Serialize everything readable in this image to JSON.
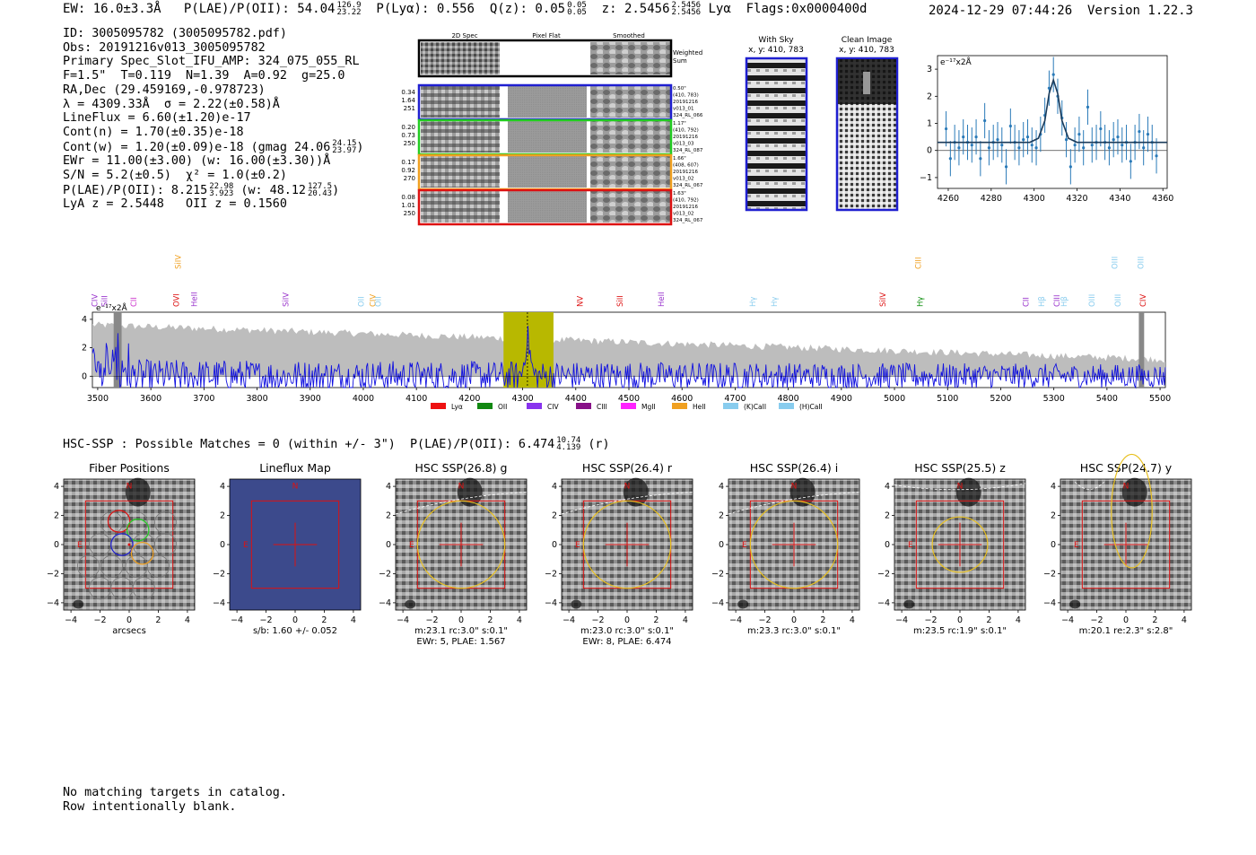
{
  "header": {
    "left_line": "EW: 16.0±3.3Å   P(LAE)/P(OII): 54.04",
    "plae_hi": "126.9",
    "plae_lo": "23.22",
    "plya": "  P(Lyα): 0.556  Q(z): 0.05",
    "qz_hi": "0.05",
    "qz_lo": "0.05",
    "z_text": "  z: 2.5456",
    "z_hi": "2.5456",
    "z_lo": "2.5456",
    "flags": " Lyα  Flags:0x0000400d",
    "datetime": "2024-12-29 07:44:26  Version 1.22.3"
  },
  "info": {
    "id": "ID: 3005095782 (3005095782.pdf)",
    "obs": "Obs: 20191216v013_3005095782",
    "slot": "Primary Spec_Slot_IFU_AMP: 324_075_055_RL",
    "params": "F=1.5\"  T=0.119  N=1.39  A=0.92  g=25.0",
    "radec": "RA,Dec (29.459169,-0.978723)",
    "wave": "λ = 4309.33Å  σ = 2.22(±0.58)Å",
    "lineflux": "LineFlux = 6.60(±1.20)e-17",
    "contn": "Cont(n) = 1.70(±0.35)e-18",
    "contw": "Cont(w) = 1.20(±0.09)e-18 (gmag 24.06",
    "gmag_hi": "24.15",
    "gmag_lo": "23.97",
    "ewr": "EWr = 11.00(±3.00) (w: 16.00(±3.30))Å",
    "sn": "S/N = 5.2(±0.5)  χ² = 1.0(±0.2)",
    "plae": "P(LAE)/P(OII): 8.215",
    "plae2_hi": "22.98",
    "plae2_lo": "3.923",
    "plae_w": " (w: 48.12",
    "plaew_hi": "127.5",
    "plaew_lo": "20.43",
    "lya_z": "LyA z = 2.5448   OII z = 0.1560"
  },
  "cutouts": {
    "col_titles": [
      "2D Spec",
      "Pixel Flat",
      "Smoothed"
    ],
    "weighted_label": [
      "Weighted",
      "Sum"
    ],
    "rows": [
      {
        "stats": [
          "0.34",
          "1.64",
          "251"
        ],
        "right": [
          "0.50\"",
          "(410, 783)",
          "20191216",
          "v013_01",
          "324_RL_066"
        ],
        "color": "#1f1fd0"
      },
      {
        "stats": [
          "0.20",
          "0.73",
          "250"
        ],
        "right": [
          "1.17\"",
          "(410, 792)",
          "20191216",
          "v013_03",
          "324_RL_087"
        ],
        "color": "#22cc22"
      },
      {
        "stats": [
          "0.17",
          "0.92",
          "270"
        ],
        "right": [
          "1.66\"",
          "(408, 607)",
          "20191216",
          "v013_02",
          "324_RL_067"
        ],
        "color": "#f0a020"
      },
      {
        "stats": [
          "0.08",
          "1.01",
          "250"
        ],
        "right": [
          "1.63\"",
          "(410, 792)",
          "20191216",
          "v013_02",
          "324_RL_067"
        ],
        "color": "#dd1111"
      }
    ],
    "sky_title": [
      "With Sky",
      "x, y: 410, 783"
    ],
    "clean_title": [
      "Clean Image",
      "x, y: 410, 783"
    ]
  },
  "line_plot": {
    "ylabel_unit": "e⁻¹⁷x2Å",
    "xticks": [
      "4260",
      "4280",
      "4300",
      "4320",
      "4340",
      "4360"
    ],
    "yticks": [
      "3",
      "2",
      "1",
      "0",
      "−1"
    ]
  },
  "full_spectrum": {
    "ylabel_unit": "e⁻¹⁷x2Å",
    "xticks": [
      "3500",
      "3600",
      "3700",
      "3800",
      "3900",
      "4000",
      "4100",
      "4200",
      "4300",
      "4400",
      "4500",
      "4600",
      "4700",
      "4800",
      "4900",
      "5000",
      "5100",
      "5200",
      "5300",
      "5400",
      "5500"
    ],
    "yticks": [
      "4",
      "2",
      "0"
    ],
    "line_labels": [
      {
        "name": "CIV",
        "wave": 3500,
        "color": "#9933cc",
        "row": 1
      },
      {
        "name": "SiII",
        "wave": 3520,
        "color": "#9933cc",
        "row": 1
      },
      {
        "name": "SiIV",
        "wave": 3672,
        "color": "#f0a020",
        "row": 0
      },
      {
        "name": "CII",
        "wave": 3580,
        "color": "#cc33cc",
        "row": 1
      },
      {
        "name": "OVI",
        "wave": 3668,
        "color": "#dd1111",
        "row": 1
      },
      {
        "name": "HeII",
        "wave": 3705,
        "color": "#9933cc",
        "row": 1
      },
      {
        "name": "SiIV",
        "wave": 3893,
        "color": "#9933cc",
        "row": 1
      },
      {
        "name": "OII",
        "wave": 4048,
        "color": "#88ccee",
        "row": 1
      },
      {
        "name": "CIV",
        "wave": 4072,
        "color": "#f0a020",
        "row": 1
      },
      {
        "name": "OII",
        "wave": 4083,
        "color": "#88ccee",
        "row": 1
      },
      {
        "name": "NV",
        "wave": 4498,
        "color": "#dd1111",
        "row": 1
      },
      {
        "name": "SiII",
        "wave": 4580,
        "color": "#dd1111",
        "row": 1
      },
      {
        "name": "HeII",
        "wave": 4665,
        "color": "#9933cc",
        "row": 1
      },
      {
        "name": "Hγ",
        "wave": 4853,
        "color": "#88ccee",
        "row": 1
      },
      {
        "name": "Hγ",
        "wave": 4897,
        "color": "#88ccee",
        "row": 1
      },
      {
        "name": "SiIV",
        "wave": 5120,
        "color": "#dd1111",
        "row": 1
      },
      {
        "name": "CIII",
        "wave": 5193,
        "color": "#f0a020",
        "row": 0
      },
      {
        "name": "Hγ",
        "wave": 5197,
        "color": "#008800",
        "row": 1
      },
      {
        "name": "CII",
        "wave": 5414,
        "color": "#9933cc",
        "row": 1
      },
      {
        "name": "Hβ",
        "wave": 5447,
        "color": "#88ccee",
        "row": 1
      },
      {
        "name": "CIII",
        "wave": 5478,
        "color": "#9933cc",
        "row": 1
      },
      {
        "name": "Hβ",
        "wave": 5493,
        "color": "#88ccee",
        "row": 1
      },
      {
        "name": "OIII",
        "wave": 5550,
        "color": "#88ccee",
        "row": 1
      },
      {
        "name": "OIII",
        "wave": 5597,
        "color": "#88ccee",
        "row": 0
      },
      {
        "name": "OIII",
        "wave": 5603,
        "color": "#88ccee",
        "row": 1
      },
      {
        "name": "OIII",
        "wave": 5650,
        "color": "#88ccee",
        "row": 0
      },
      {
        "name": "CIV",
        "wave": 5655,
        "color": "#dd1111",
        "row": 1
      }
    ],
    "legend": [
      {
        "label": "Lyα",
        "color": "#ee1111"
      },
      {
        "label": "OII",
        "color": "#118811"
      },
      {
        "label": "CIV",
        "color": "#8833ee"
      },
      {
        "label": "CIII",
        "color": "#881188"
      },
      {
        "label": "MgII",
        "color": "#ff22ff"
      },
      {
        "label": "HeII",
        "color": "#f0a020"
      },
      {
        "label": "(K)CaII",
        "color": "#88ccee"
      },
      {
        "label": "(H)CaII",
        "color": "#88ccee"
      }
    ]
  },
  "hsc": {
    "line": "HSC-SSP : Possible Matches = 0 (within +/- 3\")  P(LAE)/P(OII): 6.474",
    "hi": "10.74",
    "lo": "4.139",
    "band": " (r)",
    "panels": [
      {
        "title": "Fiber Positions",
        "caption": [
          "arcsecs"
        ]
      },
      {
        "title": "Lineflux Map",
        "caption": [
          "s/b: 1.60 +/- 0.052"
        ]
      },
      {
        "title": "HSC SSP(26.8) g",
        "caption": [
          "m:23.1 rc:3.0\"  s:0.1\"",
          "EWr: 5, PLAE: 1.567"
        ]
      },
      {
        "title": "HSC SSP(26.4) r",
        "caption": [
          "m:23.0 rc:3.0\"  s:0.1\"",
          "EWr: 8, PLAE: 6.474"
        ]
      },
      {
        "title": "HSC SSP(26.4) i",
        "caption": [
          "m:23.3 rc:3.0\"  s:0.1\""
        ]
      },
      {
        "title": "HSC SSP(25.5) z",
        "caption": [
          "m:23.5 rc:1.9\"  s:0.1\""
        ]
      },
      {
        "title": "HSC SSP(24.7) y",
        "caption": [
          "m:20.1  re:2.3\"  s:2.8\""
        ]
      }
    ],
    "xticks": [
      "−4",
      "−2",
      "0",
      "2",
      "4"
    ],
    "yticks": [
      "4",
      "2",
      "0",
      "−2",
      "−4"
    ],
    "n_label": "N",
    "e_label": "E"
  },
  "footer": {
    "line1": "No matching targets in catalog.",
    "line2": "Row intentionally blank."
  },
  "chart_data": [
    {
      "type": "scatter",
      "title": "",
      "xlabel": "",
      "ylabel": "e⁻¹⁷x2Å",
      "xlim": [
        4255,
        4362
      ],
      "ylim": [
        -1.4,
        3.5
      ],
      "series": [
        {
          "x": [
            4259,
            4261,
            4263,
            4265,
            4267,
            4269,
            4271,
            4273,
            4275,
            4277,
            4279,
            4281,
            4283,
            4285,
            4287,
            4289,
            4291,
            4293,
            4295,
            4297,
            4299,
            4301,
            4303,
            4305,
            4307,
            4309,
            4311,
            4313,
            4315,
            4317,
            4319,
            4321,
            4323,
            4325,
            4327,
            4329,
            4331,
            4333,
            4335,
            4337,
            4339,
            4341,
            4343,
            4345,
            4347,
            4349,
            4351,
            4353,
            4355,
            4357
          ],
          "y": [
            0.8,
            -0.3,
            0.3,
            0.1,
            0.5,
            0.3,
            0.2,
            0.5,
            -0.3,
            1.1,
            0.1,
            0.3,
            0.4,
            0.2,
            -0.6,
            0.9,
            0.3,
            0.1,
            0.4,
            0.5,
            0.2,
            0.1,
            0.6,
            1.3,
            2.3,
            2.8,
            2.0,
            1.2,
            0.4,
            -0.6,
            0.2,
            0.6,
            0.1,
            1.6,
            0.2,
            0.3,
            0.8,
            0.3,
            0.1,
            0.4,
            0.5,
            0.2,
            0.3,
            -0.4,
            0.3,
            0.7,
            0.1,
            0.6,
            0.3,
            -0.2
          ],
          "err": 0.65
        },
        {
          "name": "",
          "type": "line",
          "x": [
            4255,
            4298,
            4302,
            4305,
            4307,
            4309,
            4311,
            4313,
            4316,
            4320,
            4362
          ],
          "y": [
            0.3,
            0.3,
            0.45,
            1.1,
            2.1,
            2.6,
            2.1,
            1.1,
            0.45,
            0.3,
            0.3
          ]
        }
      ]
    },
    {
      "type": "line",
      "title": "",
      "xlabel": "",
      "ylabel": "e⁻¹⁷x2Å",
      "xlim": [
        3490,
        5510
      ],
      "ylim": [
        -0.8,
        4.5
      ],
      "highlight_band": [
        4264,
        4358
      ],
      "line_marker": 4309,
      "series": [
        {
          "name": "",
          "note": "flux (blue, noisy around 0, peak ~2.9 at 4309)"
        },
        {
          "name": "",
          "note": "error envelope (gray, ~3.6 at 3500 decreasing to ~1.1 at 5500)"
        }
      ]
    }
  ]
}
